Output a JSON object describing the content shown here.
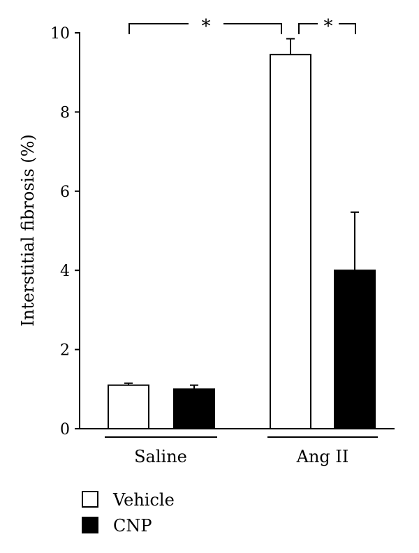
{
  "chart_data": {
    "type": "bar",
    "ylabel": "Interstitial fibrosis (%)",
    "xlabel": "",
    "ylim": [
      0,
      10
    ],
    "yticks": [
      0,
      2,
      4,
      6,
      8,
      10
    ],
    "grid": false,
    "legend_position": "bottom-left",
    "categories": [
      "Saline",
      "Ang II"
    ],
    "series": [
      {
        "name": "Vehicle",
        "color": "#ffffff",
        "values": [
          1.1,
          9.45
        ],
        "errors": [
          0.05,
          0.4
        ]
      },
      {
        "name": "CNP",
        "color": "#000000",
        "values": [
          1.0,
          4.0
        ],
        "errors": [
          0.1,
          1.47
        ]
      }
    ],
    "annotations": [
      {
        "label": "*",
        "from": "Saline Vehicle",
        "to": "Ang II Vehicle"
      },
      {
        "label": "*",
        "from": "Ang II Vehicle",
        "to": "Ang II CNP"
      }
    ]
  }
}
